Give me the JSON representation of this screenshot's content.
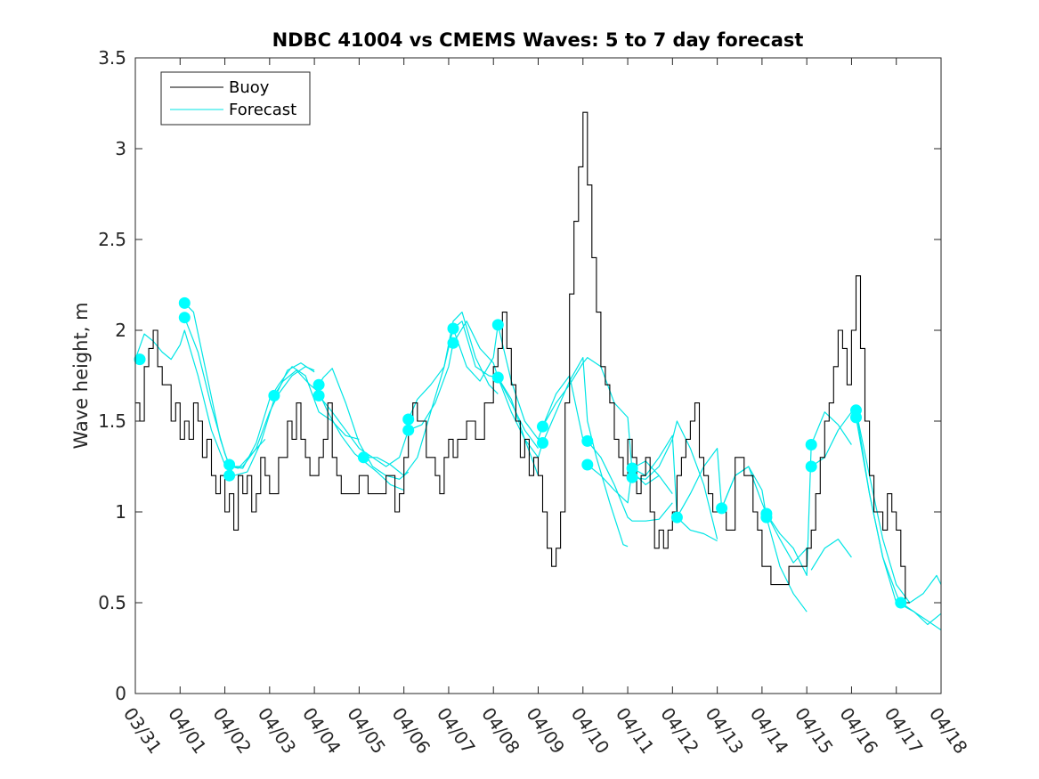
{
  "chart_data": {
    "type": "line",
    "title": "NDBC 41004 vs CMEMS Waves: 5 to 7 day forecast",
    "xlabel": "",
    "ylabel": "Wave height, m",
    "ylim": [
      0,
      3.5
    ],
    "xlim": [
      0,
      18
    ],
    "y_ticks": [
      "0",
      "0.5",
      "1",
      "1.5",
      "2",
      "2.5",
      "3",
      "3.5"
    ],
    "x_ticks": [
      "03/31",
      "04/01",
      "04/02",
      "04/03",
      "04/04",
      "04/05",
      "04/06",
      "04/07",
      "04/08",
      "04/09",
      "04/10",
      "04/11",
      "04/12",
      "04/13",
      "04/14",
      "04/15",
      "04/16",
      "04/17",
      "04/18"
    ],
    "legend": {
      "placement": "top-left",
      "entries": [
        {
          "label": "Buoy",
          "color": "#000000"
        },
        {
          "label": "Forecast",
          "color": "#00ffff"
        }
      ]
    },
    "colors": {
      "buoy": "#000000",
      "forecast": "#00e5e5",
      "marker": "#00ffff"
    },
    "series": [
      {
        "name": "Buoy",
        "x": [
          0,
          0.1,
          0.2,
          0.3,
          0.4,
          0.5,
          0.6,
          0.7,
          0.8,
          0.9,
          1.0,
          1.1,
          1.2,
          1.3,
          1.4,
          1.5,
          1.6,
          1.7,
          1.8,
          1.9,
          2.0,
          2.1,
          2.2,
          2.3,
          2.4,
          2.5,
          2.6,
          2.7,
          2.8,
          2.9,
          3.0,
          3.2,
          3.4,
          3.5,
          3.6,
          3.7,
          3.8,
          3.9,
          4.0,
          4.1,
          4.2,
          4.3,
          4.4,
          4.5,
          4.6,
          4.8,
          5.0,
          5.2,
          5.4,
          5.6,
          5.8,
          5.9,
          6.0,
          6.1,
          6.2,
          6.3,
          6.5,
          6.7,
          6.8,
          6.9,
          7.0,
          7.1,
          7.2,
          7.4,
          7.6,
          7.8,
          8.0,
          8.1,
          8.2,
          8.3,
          8.4,
          8.5,
          8.6,
          8.7,
          8.8,
          8.9,
          9.0,
          9.1,
          9.2,
          9.3,
          9.4,
          9.5,
          9.6,
          9.7,
          9.8,
          9.9,
          10.0,
          10.1,
          10.2,
          10.3,
          10.4,
          10.5,
          10.6,
          10.7,
          10.8,
          10.9,
          11.0,
          11.1,
          11.2,
          11.3,
          11.4,
          11.5,
          11.6,
          11.7,
          11.8,
          11.9,
          12.0,
          12.1,
          12.2,
          12.3,
          12.4,
          12.5,
          12.6,
          12.7,
          12.8,
          12.9,
          13.0,
          13.2,
          13.4,
          13.6,
          13.8,
          13.9,
          14.0,
          14.2,
          14.4,
          14.6,
          14.8,
          15.0,
          15.1,
          15.2,
          15.3,
          15.4,
          15.5,
          15.6,
          15.7,
          15.8,
          15.9,
          16.0,
          16.1,
          16.2,
          16.3,
          16.4,
          16.5,
          16.6,
          16.7,
          16.8,
          16.9,
          17.0,
          17.1,
          17.2,
          17.3
        ],
        "y": [
          1.6,
          1.5,
          1.8,
          1.9,
          2.0,
          1.8,
          1.7,
          1.7,
          1.5,
          1.6,
          1.4,
          1.5,
          1.4,
          1.6,
          1.5,
          1.3,
          1.4,
          1.2,
          1.1,
          1.2,
          1.0,
          1.1,
          0.9,
          1.2,
          1.1,
          1.2,
          1.0,
          1.1,
          1.3,
          1.2,
          1.1,
          1.3,
          1.5,
          1.4,
          1.6,
          1.4,
          1.3,
          1.2,
          1.2,
          1.3,
          1.4,
          1.6,
          1.3,
          1.2,
          1.1,
          1.1,
          1.2,
          1.1,
          1.1,
          1.2,
          1.0,
          1.1,
          1.3,
          1.5,
          1.6,
          1.5,
          1.3,
          1.2,
          1.1,
          1.3,
          1.4,
          1.3,
          1.4,
          1.5,
          1.4,
          1.6,
          1.8,
          1.9,
          2.1,
          1.9,
          1.7,
          1.5,
          1.3,
          1.4,
          1.2,
          1.3,
          1.2,
          1.0,
          0.8,
          0.7,
          0.8,
          1.0,
          1.6,
          2.2,
          2.6,
          2.9,
          3.2,
          2.8,
          2.4,
          2.1,
          1.8,
          1.7,
          1.6,
          1.4,
          1.3,
          1.2,
          1.4,
          1.3,
          1.1,
          1.2,
          1.3,
          1.0,
          0.8,
          0.9,
          0.8,
          0.9,
          1.0,
          1.2,
          1.3,
          1.4,
          1.5,
          1.6,
          1.3,
          1.2,
          1.1,
          1.0,
          1.0,
          0.9,
          1.3,
          1.2,
          1.0,
          0.9,
          0.7,
          0.6,
          0.6,
          0.7,
          0.7,
          0.8,
          0.9,
          1.1,
          1.3,
          1.5,
          1.6,
          1.8,
          2.0,
          1.9,
          1.7,
          2.0,
          2.3,
          1.9,
          1.5,
          1.2,
          1.0,
          1.0,
          0.9,
          1.1,
          1.0,
          0.9,
          0.7,
          0.5,
          0.5
        ]
      },
      {
        "name": "Forecast",
        "runs": [
          {
            "x": [
              0.0,
              0.2,
              0.4,
              0.6,
              0.8,
              1.0,
              1.1,
              1.4,
              1.7,
              2.0,
              2.3,
              2.6,
              2.9
            ],
            "y": [
              1.84,
              1.98,
              1.94,
              1.88,
              1.84,
              1.92,
              2.0,
              1.75,
              1.45,
              1.26,
              1.24,
              1.32,
              1.4
            ]
          },
          {
            "x": [
              1.1,
              1.3,
              1.6,
              1.9,
              2.1,
              2.4,
              2.7,
              3.0,
              3.2,
              3.5,
              3.8,
              4.0
            ],
            "y": [
              2.15,
              2.1,
              1.75,
              1.4,
              1.25,
              1.25,
              1.35,
              1.55,
              1.65,
              1.75,
              1.8,
              1.78
            ]
          },
          {
            "x": [
              1.1,
              1.4,
              1.7,
              2.0,
              2.2,
              2.5,
              2.8,
              3.1,
              3.4,
              3.7,
              4.0
            ],
            "y": [
              2.07,
              1.88,
              1.58,
              1.32,
              1.2,
              1.22,
              1.38,
              1.62,
              1.78,
              1.82,
              1.77
            ]
          },
          {
            "x": [
              2.1,
              2.4,
              2.7,
              3.0,
              3.2,
              3.5,
              3.8,
              4.1,
              4.4,
              4.7,
              5.0
            ],
            "y": [
              1.25,
              1.24,
              1.38,
              1.62,
              1.7,
              1.8,
              1.75,
              1.55,
              1.5,
              1.42,
              1.4
            ]
          },
          {
            "x": [
              3.1,
              3.3,
              3.6,
              3.9,
              4.1,
              4.3,
              4.6,
              4.9,
              5.1,
              5.4,
              5.7,
              6.0
            ],
            "y": [
              1.64,
              1.72,
              1.78,
              1.7,
              1.66,
              1.55,
              1.42,
              1.32,
              1.28,
              1.22,
              1.15,
              1.12
            ]
          },
          {
            "x": [
              4.1,
              4.2,
              4.4,
              4.7,
              5.0,
              5.3,
              5.6,
              5.9,
              6.1
            ],
            "y": [
              1.7,
              1.74,
              1.79,
              1.6,
              1.38,
              1.25,
              1.2,
              1.18,
              1.22
            ]
          },
          {
            "x": [
              4.1,
              4.4,
              4.7,
              5.0,
              5.3,
              5.6,
              5.9,
              6.1
            ],
            "y": [
              1.64,
              1.55,
              1.45,
              1.35,
              1.3,
              1.25,
              1.3,
              1.45
            ]
          },
          {
            "x": [
              5.1,
              5.4,
              5.7,
              6.0,
              6.3,
              6.6,
              6.9,
              7.1,
              7.3,
              7.6,
              7.9,
              8.1
            ],
            "y": [
              1.3,
              1.3,
              1.26,
              1.2,
              1.3,
              1.55,
              1.8,
              2.05,
              2.1,
              1.85,
              1.7,
              1.65
            ]
          },
          {
            "x": [
              6.1,
              6.3,
              6.6,
              6.9,
              7.1,
              7.3,
              7.6,
              7.9,
              8.1,
              8.4,
              8.7,
              9.0
            ],
            "y": [
              1.51,
              1.62,
              1.7,
              1.8,
              2.01,
              2.05,
              1.8,
              1.75,
              1.74,
              1.6,
              1.45,
              1.35
            ]
          },
          {
            "x": [
              6.1,
              6.4,
              6.7,
              7.0,
              7.1,
              7.4,
              7.7,
              8.0,
              8.1,
              8.4,
              8.7,
              9.0
            ],
            "y": [
              1.45,
              1.48,
              1.6,
              1.8,
              1.93,
              2.05,
              1.9,
              1.82,
              1.74,
              1.62,
              1.4,
              1.2
            ]
          },
          {
            "x": [
              7.1,
              7.4,
              7.7,
              8.0,
              8.1,
              8.4,
              8.7,
              9.0,
              9.1,
              9.4,
              9.7,
              10.0
            ],
            "y": [
              2.01,
              1.8,
              1.72,
              1.85,
              2.03,
              1.72,
              1.5,
              1.4,
              1.47,
              1.65,
              1.75,
              1.4
            ]
          },
          {
            "x": [
              8.1,
              8.4,
              8.7,
              9.0,
              9.1,
              9.4,
              9.7,
              10.0,
              10.1,
              10.3,
              10.6,
              10.9,
              11.0
            ],
            "y": [
              1.74,
              1.55,
              1.4,
              1.3,
              1.38,
              1.55,
              1.72,
              1.85,
              1.5,
              1.3,
              1.05,
              0.82,
              0.81
            ]
          },
          {
            "x": [
              9.1,
              9.4,
              9.7,
              10.0,
              10.1,
              10.4,
              10.7,
              11.0,
              11.1,
              11.4,
              11.7
            ],
            "y": [
              1.47,
              1.6,
              1.7,
              1.82,
              1.85,
              1.8,
              1.6,
              1.52,
              1.22,
              1.15,
              1.2
            ]
          },
          {
            "x": [
              10.1,
              10.4,
              10.7,
              11.0,
              11.1,
              11.4,
              11.7,
              12.0
            ],
            "y": [
              1.39,
              1.3,
              1.15,
              0.97,
              0.95,
              0.95,
              0.96,
              1.05
            ]
          },
          {
            "x": [
              10.1,
              10.4,
              10.7,
              11.0,
              11.1,
              11.4,
              11.7,
              12.0
            ],
            "y": [
              1.26,
              1.2,
              1.12,
              1.05,
              1.24,
              1.28,
              1.2,
              1.1
            ]
          },
          {
            "x": [
              11.1,
              11.4,
              11.7,
              12.0,
              12.1,
              12.4,
              12.7,
              13.0
            ],
            "y": [
              1.19,
              1.18,
              1.25,
              1.4,
              1.5,
              1.35,
              1.15,
              0.85
            ]
          },
          {
            "x": [
              11.1,
              11.4,
              11.7,
              12.0,
              12.1,
              12.4,
              12.7,
              13.0
            ],
            "y": [
              1.24,
              1.2,
              1.3,
              1.42,
              0.97,
              0.9,
              0.88,
              0.84
            ]
          },
          {
            "x": [
              12.1,
              12.4,
              12.7,
              13.0,
              13.1,
              13.4,
              13.7,
              14.0,
              14.1,
              14.4,
              14.7,
              15.0
            ],
            "y": [
              0.97,
              1.1,
              1.25,
              1.35,
              1.02,
              1.2,
              1.25,
              1.05,
              0.99,
              0.85,
              0.72,
              0.8
            ]
          },
          {
            "x": [
              13.1,
              13.4,
              13.7,
              14.0,
              14.1,
              14.4,
              14.7,
              15.0
            ],
            "y": [
              1.02,
              1.2,
              1.25,
              1.12,
              0.97,
              0.7,
              0.55,
              0.45
            ]
          },
          {
            "x": [
              14.1,
              14.4,
              14.7,
              15.0,
              15.1,
              15.4,
              15.7,
              16.0
            ],
            "y": [
              0.99,
              0.88,
              0.8,
              0.65,
              1.37,
              1.55,
              1.48,
              1.37
            ]
          },
          {
            "x": [
              15.1,
              15.4,
              15.7,
              16.0,
              16.1,
              16.4,
              16.7,
              17.0
            ],
            "y": [
              1.25,
              1.3,
              1.45,
              1.55,
              1.56,
              1.1,
              0.75,
              0.5
            ]
          },
          {
            "x": [
              15.1,
              15.4,
              15.7,
              16.0
            ],
            "y": [
              0.68,
              0.8,
              0.85,
              0.75
            ]
          },
          {
            "x": [
              16.1,
              16.4,
              16.7,
              17.0,
              17.1,
              17.4,
              17.7,
              18.0
            ],
            "y": [
              1.52,
              1.1,
              0.75,
              0.55,
              0.49,
              0.45,
              0.4,
              0.35
            ]
          },
          {
            "x": [
              16.1,
              16.4,
              16.7,
              17.0,
              17.3,
              17.6,
              17.9,
              18.0
            ],
            "y": [
              1.56,
              1.2,
              0.85,
              0.6,
              0.5,
              0.55,
              0.65,
              0.6
            ]
          },
          {
            "x": [
              17.1,
              17.4,
              17.7,
              18.0
            ],
            "y": [
              0.5,
              0.45,
              0.38,
              0.44
            ]
          }
        ]
      }
    ],
    "markers": {
      "x": [
        0.1,
        1.1,
        1.1,
        2.1,
        2.1,
        3.1,
        4.1,
        4.1,
        5.1,
        6.1,
        6.1,
        7.1,
        7.1,
        8.1,
        8.1,
        9.1,
        9.1,
        10.1,
        10.1,
        11.1,
        11.1,
        12.1,
        13.1,
        14.1,
        14.1,
        15.1,
        15.1,
        16.1,
        16.1,
        17.1
      ],
      "y": [
        1.84,
        2.15,
        2.07,
        1.26,
        1.2,
        1.64,
        1.7,
        1.64,
        1.3,
        1.51,
        1.45,
        2.01,
        1.93,
        2.03,
        1.74,
        1.47,
        1.38,
        1.39,
        1.26,
        1.24,
        1.19,
        0.97,
        1.02,
        0.99,
        0.97,
        1.37,
        1.25,
        1.56,
        1.52,
        0.5
      ]
    }
  }
}
